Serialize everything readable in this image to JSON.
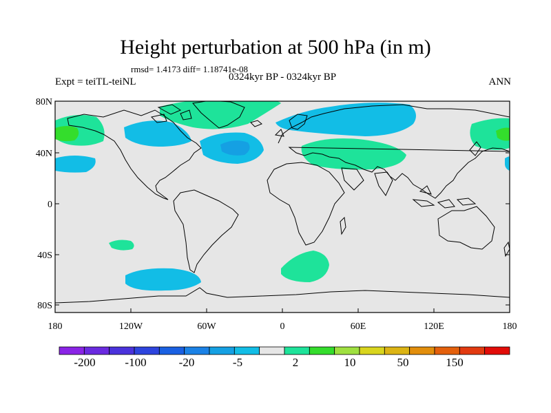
{
  "title": "Height perturbation at 500 hPa (in m)",
  "stats": "rmsd= 1.4173 diff= 1.18741e-08",
  "subtitle": "0324kyr BP - 0324kyr BP",
  "experiment": "Expt = teiTL-teiNL",
  "season": "ANN",
  "lat_labels": [
    "80N",
    "40N",
    "0",
    "40S",
    "80S"
  ],
  "lon_labels": [
    "180",
    "120W",
    "60W",
    "0",
    "60E",
    "120E",
    "180"
  ],
  "colorbar": {
    "colors": [
      "#8a24e6",
      "#6a2ae0",
      "#4a32dc",
      "#2d44de",
      "#1a60e2",
      "#1b82e6",
      "#15a0e3",
      "#12bde6",
      "#e6e6e6",
      "#1ee39a",
      "#34dd2c",
      "#9fe040",
      "#d9d51e",
      "#dcb414",
      "#e28e0c",
      "#e4600c",
      "#e23a10",
      "#e20c08"
    ],
    "labels": [
      "-200",
      "-100",
      "-20",
      "-5",
      "2",
      "10",
      "50",
      "150"
    ]
  },
  "colors": {
    "background": "#e6e6e6",
    "positive_weak": "#1ee39a",
    "positive_mid": "#34dd2c",
    "negative_weak": "#12bde6",
    "negative_mid": "#15a0e3"
  }
}
